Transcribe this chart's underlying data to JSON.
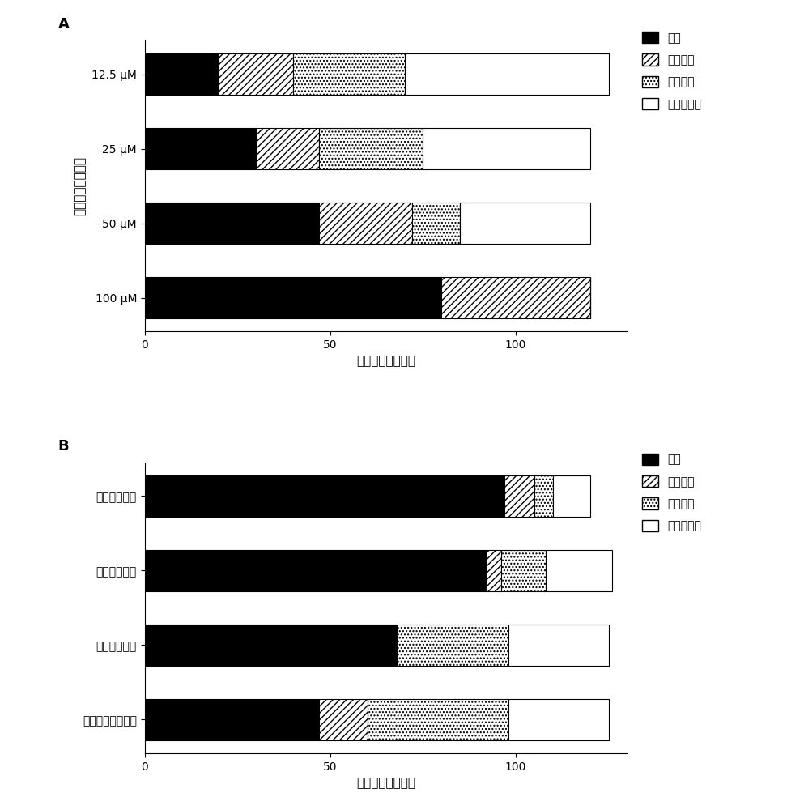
{
  "chart_A": {
    "title": "A",
    "categories": [
      "100 μM",
      "50 μM",
      "25 μM",
      "12.5 μM"
    ],
    "ylabel": "小分子化合物浓度",
    "xlabel": "小分子化合物数目",
    "data": {
      "lethal": [
        80,
        47,
        30,
        20
      ],
      "complete": [
        40,
        25,
        17,
        20
      ],
      "partial": [
        0,
        13,
        28,
        30
      ],
      "no_effect": [
        0,
        35,
        45,
        55
      ]
    },
    "xlim": [
      0,
      130
    ]
  },
  "chart_B": {
    "title": "B",
    "categories": [
      "十字花科黑腐病菌",
      "番茄溃疡病菌",
      "枯草芽孢杆菌",
      "荧光假单胞菌"
    ],
    "ylabel": "",
    "xlabel": "小分子化合物数目",
    "data": {
      "lethal": [
        47,
        68,
        92,
        97
      ],
      "complete": [
        13,
        0,
        4,
        8
      ],
      "partial": [
        38,
        30,
        12,
        5
      ],
      "no_effect": [
        27,
        27,
        18,
        10
      ]
    },
    "xlim": [
      0,
      130
    ]
  },
  "legend_labels": [
    "致死",
    "完全抑制",
    "部分抑制",
    "无显著影响"
  ],
  "bar_height": 0.55,
  "font_size": 11
}
